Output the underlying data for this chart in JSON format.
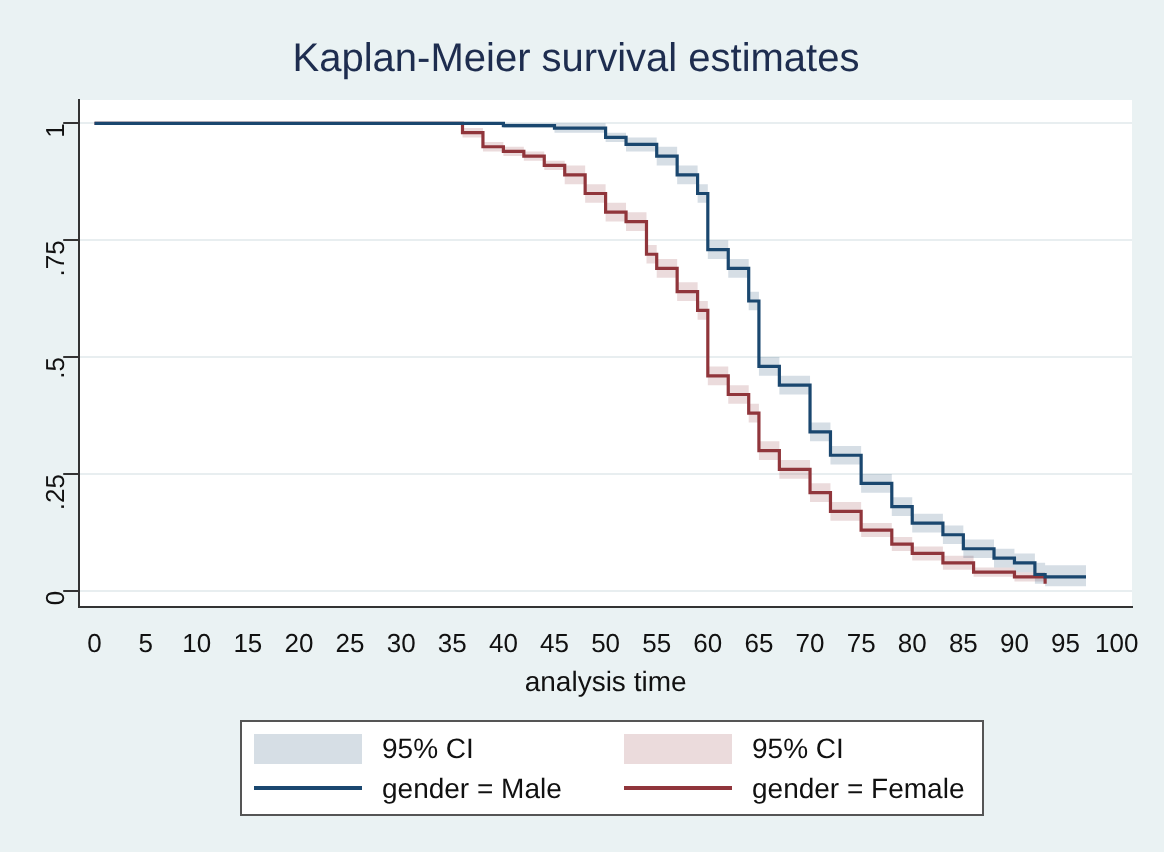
{
  "chart_data": {
    "type": "step",
    "title": "Kaplan-Meier survival estimates",
    "xlabel": "analysis time",
    "xlim": [
      -1.5,
      101.5
    ],
    "xticks": [
      0,
      5,
      10,
      15,
      20,
      25,
      30,
      35,
      40,
      45,
      50,
      55,
      60,
      65,
      70,
      75,
      80,
      85,
      90,
      95,
      100
    ],
    "ylim": [
      -0.035,
      1.05
    ],
    "yticks": [
      0,
      {
        "value": 0.25,
        "label": ".25"
      },
      {
        "value": 0.5,
        "label": ".5"
      },
      {
        "value": 0.75,
        "label": ".75"
      },
      1
    ],
    "grid": "y",
    "legend": "bottom",
    "annotations": [
      "95% CI",
      "95% CI"
    ],
    "series": [
      {
        "name": "gender = Male",
        "color": "#1a476f",
        "x": [
          0,
          35,
          40,
          45,
          50,
          52,
          55,
          57,
          59,
          60,
          62,
          64,
          65,
          67,
          70,
          72,
          75,
          78,
          80,
          83,
          85,
          88,
          90,
          92,
          93,
          97
        ],
        "values": [
          1,
          1,
          0.995,
          0.99,
          0.97,
          0.955,
          0.93,
          0.89,
          0.85,
          0.73,
          0.69,
          0.62,
          0.48,
          0.44,
          0.34,
          0.29,
          0.23,
          0.18,
          0.145,
          0.12,
          0.09,
          0.07,
          0.06,
          0.035,
          0.03,
          0.03
        ],
        "lower": [
          1,
          1,
          0.99,
          0.98,
          0.96,
          0.94,
          0.91,
          0.87,
          0.83,
          0.71,
          0.67,
          0.6,
          0.46,
          0.42,
          0.32,
          0.27,
          0.21,
          0.16,
          0.125,
          0.1,
          0.07,
          0.05,
          0.04,
          0.015,
          0.01,
          0.01
        ],
        "upper": [
          1,
          1,
          1,
          1,
          0.98,
          0.97,
          0.95,
          0.91,
          0.87,
          0.75,
          0.71,
          0.64,
          0.5,
          0.46,
          0.36,
          0.31,
          0.25,
          0.2,
          0.165,
          0.14,
          0.11,
          0.09,
          0.08,
          0.06,
          0.055,
          0.055
        ]
      },
      {
        "name": "gender = Female",
        "color": "#90353b",
        "x": [
          0,
          36,
          38,
          40,
          42,
          44,
          46,
          48,
          50,
          52,
          54,
          55,
          57,
          59,
          60,
          62,
          64,
          65,
          67,
          70,
          72,
          75,
          78,
          80,
          83,
          86,
          90,
          92,
          93
        ],
        "values": [
          1,
          0.98,
          0.95,
          0.94,
          0.93,
          0.91,
          0.89,
          0.85,
          0.81,
          0.79,
          0.72,
          0.69,
          0.64,
          0.6,
          0.46,
          0.42,
          0.38,
          0.3,
          0.26,
          0.21,
          0.17,
          0.13,
          0.1,
          0.08,
          0.06,
          0.04,
          0.03,
          0.03,
          0.015
        ],
        "lower": [
          1,
          0.97,
          0.94,
          0.93,
          0.92,
          0.9,
          0.87,
          0.83,
          0.79,
          0.77,
          0.7,
          0.67,
          0.62,
          0.58,
          0.44,
          0.4,
          0.36,
          0.28,
          0.24,
          0.19,
          0.15,
          0.115,
          0.085,
          0.065,
          0.045,
          0.03,
          0.02,
          0.02,
          0.005
        ],
        "upper": [
          1,
          0.99,
          0.96,
          0.95,
          0.94,
          0.92,
          0.91,
          0.87,
          0.83,
          0.81,
          0.74,
          0.71,
          0.66,
          0.62,
          0.48,
          0.44,
          0.4,
          0.32,
          0.28,
          0.23,
          0.19,
          0.145,
          0.115,
          0.095,
          0.075,
          0.05,
          0.04,
          0.04,
          0.025
        ]
      }
    ]
  }
}
